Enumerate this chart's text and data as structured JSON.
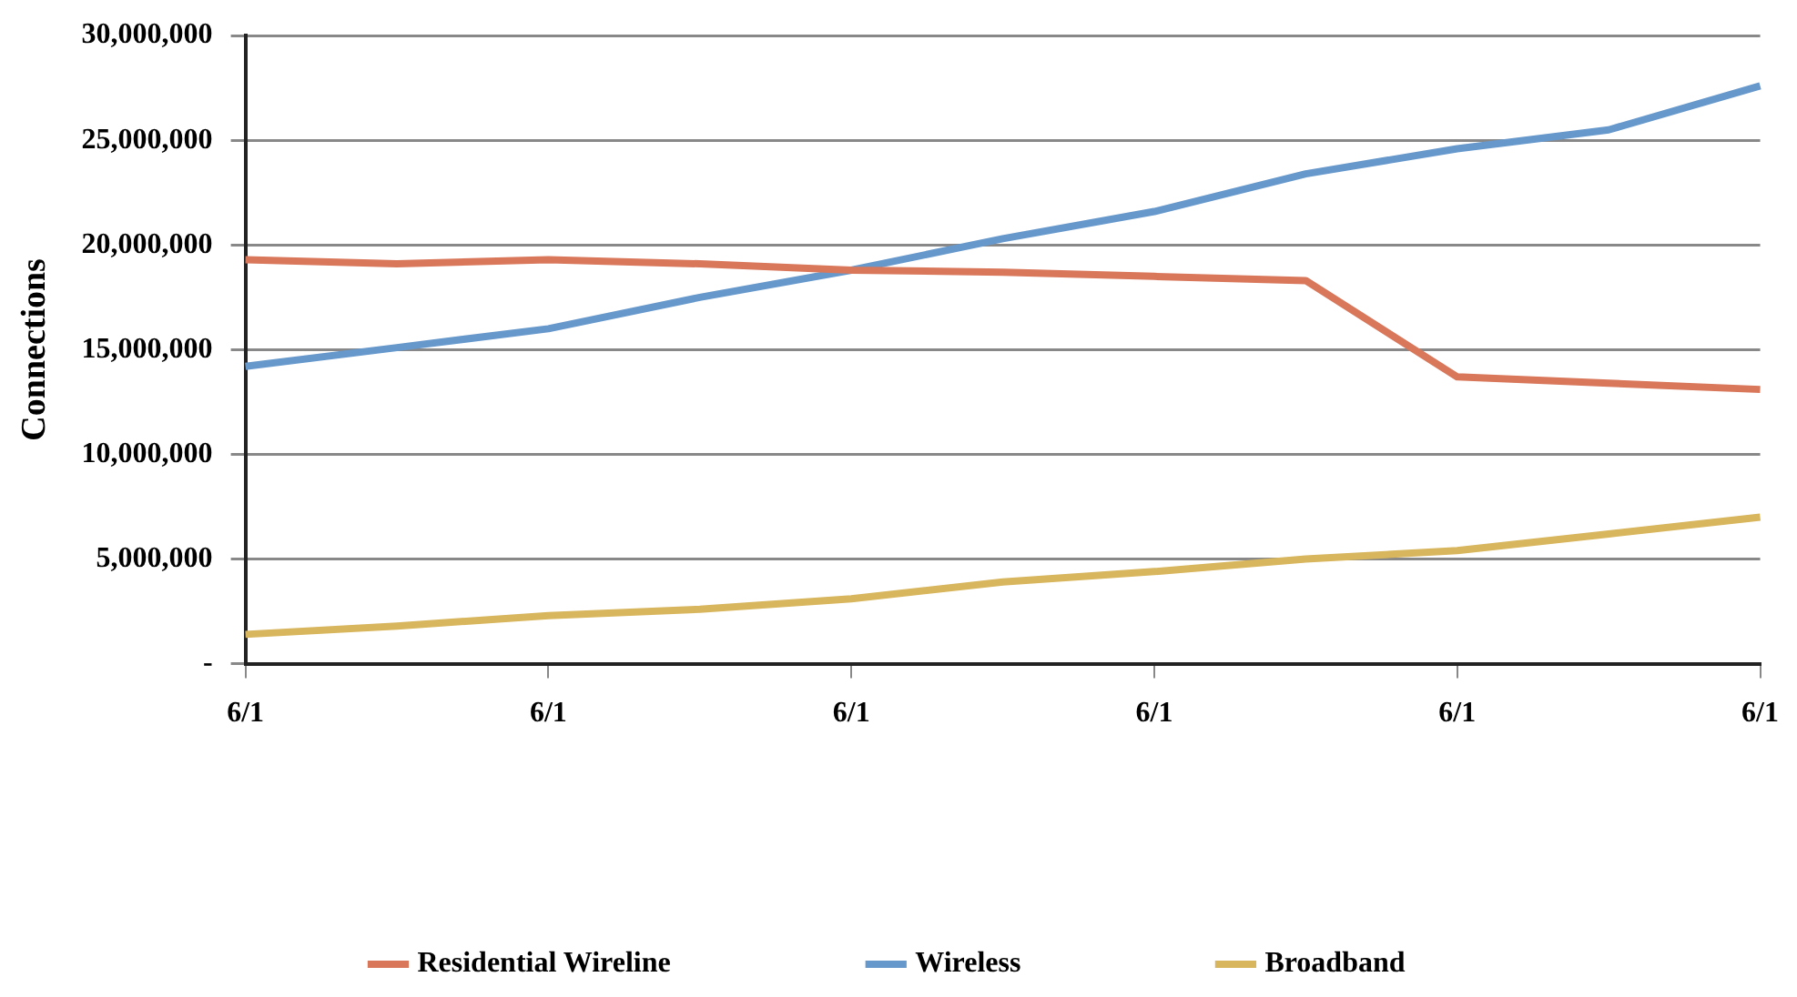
{
  "chart_data": {
    "type": "line",
    "ylabel": "Connections",
    "categories": [
      "6/1",
      null,
      "6/1",
      null,
      "6/1",
      null,
      "6/1",
      null,
      "6/1",
      null,
      "6/1"
    ],
    "series": [
      {
        "name": "Residential Wireline",
        "color": "#d9775b",
        "values": [
          19300000,
          19100000,
          19300000,
          19100000,
          18800000,
          18700000,
          18500000,
          18300000,
          13700000,
          13400000,
          13100000
        ]
      },
      {
        "name": "Wireless",
        "color": "#6798cc",
        "values": [
          14200000,
          15100000,
          16000000,
          17500000,
          18800000,
          20300000,
          21600000,
          23400000,
          24600000,
          25500000,
          27600000
        ]
      },
      {
        "name": "Broadband",
        "color": "#d8b65e",
        "values": [
          1400000,
          1800000,
          2300000,
          2600000,
          3100000,
          3900000,
          4400000,
          5000000,
          5400000,
          6200000,
          7000000
        ]
      }
    ],
    "ylim": [
      0,
      30000000
    ],
    "yticks": [
      {
        "value": 0,
        "label": "-"
      },
      {
        "value": 5000000,
        "label": "5,000,000"
      },
      {
        "value": 10000000,
        "label": "10,000,000"
      },
      {
        "value": 15000000,
        "label": "15,000,000"
      },
      {
        "value": 20000000,
        "label": "20,000,000"
      },
      {
        "value": 25000000,
        "label": "25,000,000"
      },
      {
        "value": 30000000,
        "label": "30,000,000"
      }
    ],
    "grid": "y",
    "legend": "bottom",
    "marker": "none",
    "line_style": "solid"
  }
}
